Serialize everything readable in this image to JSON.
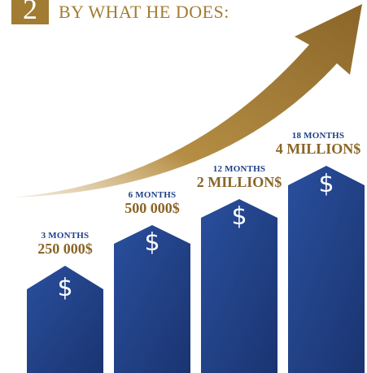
{
  "header": {
    "step_number": "2",
    "title": "BY WHAT HE DOES:"
  },
  "colors": {
    "gold": "#a27c32",
    "gold_dark": "#8a6528",
    "navy": "#1e3f86",
    "navy_dark": "#1a3470"
  },
  "chart_data": {
    "type": "bar",
    "categories": [
      "3 MONTHS",
      "6 MONTHS",
      "12 MONTHS",
      "18 MONTHS"
    ],
    "value_labels": [
      "250 000$",
      "500 000$",
      "2 MILLION$",
      "4 MILLION$"
    ],
    "bar_symbol": "$",
    "arrow": "rising-trend"
  }
}
